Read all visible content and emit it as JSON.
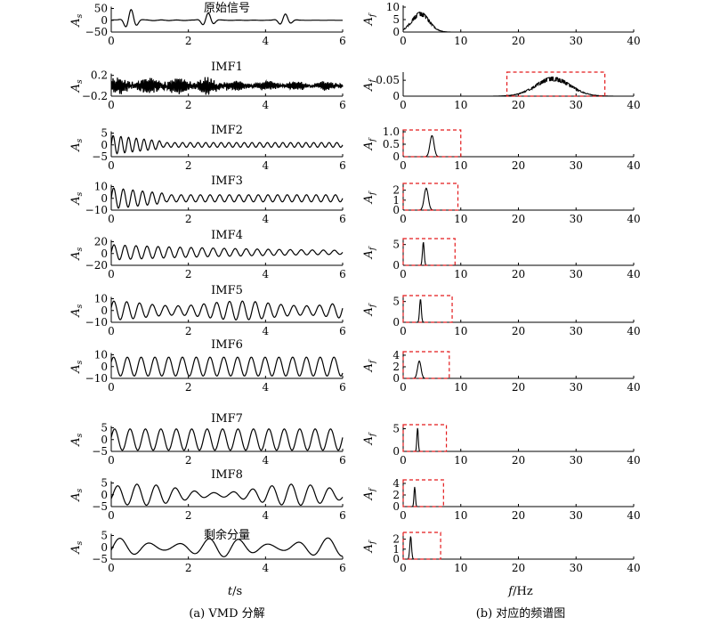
{
  "captions": {
    "left": "(a) VMD 分解",
    "right": "(b) 对应的频谱图"
  },
  "xlabels": {
    "left_var": "t",
    "left_unit": "/s",
    "right_var": "f",
    "right_unit": "/Hz"
  },
  "ylabels": {
    "left_base": "A",
    "left_sub": "s",
    "right_base": "A",
    "right_sub": "f"
  },
  "colors": {
    "signal": "#000000",
    "box": "#e31a1c"
  },
  "chart_data": [
    {
      "type": "line",
      "title": "原始信号",
      "panel": "time",
      "xlim": [
        0,
        6
      ],
      "ylim": [
        -50,
        50
      ],
      "xticks": [
        "0",
        "2",
        "4",
        "6"
      ],
      "yticks": [
        "50",
        "0",
        "−50"
      ],
      "ytick_values": [
        50,
        0,
        -50
      ],
      "signal": "transient bursts near t≈0.5, 2.5, 4.5 s"
    },
    {
      "type": "line",
      "title": "IMF1",
      "panel": "time",
      "xlim": [
        0,
        6
      ],
      "ylim": [
        -0.2,
        0.2
      ],
      "xticks": [
        "0",
        "2",
        "4",
        "6"
      ],
      "yticks": [
        "0.2",
        "−0.2"
      ],
      "ytick_values": [
        0.2,
        -0.2
      ],
      "signal": "high-frequency noise"
    },
    {
      "type": "line",
      "title": "IMF2",
      "panel": "time",
      "xlim": [
        0,
        6
      ],
      "ylim": [
        -5,
        5
      ],
      "xticks": [
        "0",
        "2",
        "4",
        "6"
      ],
      "yticks": [
        "5",
        "0",
        "−5"
      ],
      "ytick_values": [
        5,
        0,
        -5
      ],
      "signal": "damped oscillation ≈5 Hz"
    },
    {
      "type": "line",
      "title": "IMF3",
      "panel": "time",
      "xlim": [
        0,
        6
      ],
      "ylim": [
        -10,
        10
      ],
      "xticks": [
        "0",
        "2",
        "4",
        "6"
      ],
      "yticks": [
        "10",
        "0",
        "−10"
      ],
      "ytick_values": [
        10,
        0,
        -10
      ],
      "signal": "damped oscillation ≈4 Hz"
    },
    {
      "type": "line",
      "title": "IMF4",
      "panel": "time",
      "xlim": [
        0,
        6
      ],
      "ylim": [
        -20,
        20
      ],
      "xticks": [
        "0",
        "2",
        "4",
        "6"
      ],
      "yticks": [
        "20",
        "0",
        "−20"
      ],
      "ytick_values": [
        20,
        0,
        -20
      ],
      "signal": "oscillation ≈3.5 Hz decaying"
    },
    {
      "type": "line",
      "title": "IMF5",
      "panel": "time",
      "xlim": [
        0,
        6
      ],
      "ylim": [
        -10,
        10
      ],
      "xticks": [
        "0",
        "2",
        "4",
        "6"
      ],
      "yticks": [
        "10",
        "0",
        "−10"
      ],
      "ytick_values": [
        10,
        0,
        -10
      ],
      "signal": "oscillation ≈3 Hz"
    },
    {
      "type": "line",
      "title": "IMF6",
      "panel": "time",
      "xlim": [
        0,
        6
      ],
      "ylim": [
        -10,
        10
      ],
      "xticks": [
        "0",
        "2",
        "4",
        "6"
      ],
      "yticks": [
        "10",
        "0",
        "−10"
      ],
      "ytick_values": [
        10,
        0,
        -10
      ],
      "signal": "oscillation ≈2.8 Hz"
    },
    {
      "type": "line",
      "title": "IMF7",
      "panel": "time",
      "xlim": [
        0,
        6
      ],
      "ylim": [
        -5,
        5
      ],
      "xticks": [
        "0",
        "2",
        "4",
        "6"
      ],
      "yticks": [
        "5",
        "0",
        "−5"
      ],
      "ytick_values": [
        5,
        0,
        -5
      ],
      "signal": "oscillation ≈2.5 Hz"
    },
    {
      "type": "line",
      "title": "IMF8",
      "panel": "time",
      "xlim": [
        0,
        6
      ],
      "ylim": [
        -5,
        5
      ],
      "xticks": [
        "0",
        "2",
        "4",
        "6"
      ],
      "yticks": [
        "5",
        "0",
        "−5"
      ],
      "ytick_values": [
        5,
        0,
        -5
      ],
      "signal": "oscillation ≈2 Hz"
    },
    {
      "type": "line",
      "title": "剩余分量",
      "panel": "time",
      "xlim": [
        0,
        6
      ],
      "ylim": [
        -5,
        5
      ],
      "xticks": [
        "0",
        "2",
        "4",
        "6"
      ],
      "yticks": [
        "5",
        "0",
        "−5"
      ],
      "ytick_values": [
        5,
        0,
        -5
      ],
      "signal": "slow oscillation ≈1.3 Hz"
    },
    {
      "type": "line",
      "panel": "freq",
      "xlim": [
        0,
        40
      ],
      "ylim": [
        0,
        10
      ],
      "xticks": [
        "0",
        "10",
        "20",
        "30",
        "40"
      ],
      "yticks": [
        "10",
        "5",
        "0"
      ],
      "ytick_values": [
        10,
        5,
        0
      ],
      "peaks": [
        {
          "f": 3,
          "amp": 8,
          "width": 1.5
        }
      ]
    },
    {
      "type": "line",
      "panel": "freq",
      "xlim": [
        0,
        40
      ],
      "ylim": [
        0,
        0.07
      ],
      "xticks": [
        "0",
        "10",
        "20",
        "30",
        "40"
      ],
      "yticks": [
        "0.05",
        "0"
      ],
      "ytick_values": [
        0.05,
        0
      ],
      "peaks": [
        {
          "f": 26,
          "amp": 0.06,
          "width": 3
        }
      ],
      "box": [
        18,
        35
      ]
    },
    {
      "type": "line",
      "panel": "freq",
      "xlim": [
        0,
        40
      ],
      "ylim": [
        0,
        1.0
      ],
      "xticks": [
        "0",
        "10",
        "20",
        "30",
        "40"
      ],
      "yticks": [
        "1.0",
        "0.5",
        "0"
      ],
      "ytick_values": [
        1.0,
        0.5,
        0
      ],
      "peaks": [
        {
          "f": 5,
          "amp": 0.85,
          "width": 0.35
        }
      ],
      "box": [
        0,
        10
      ]
    },
    {
      "type": "line",
      "panel": "freq",
      "xlim": [
        0,
        40
      ],
      "ylim": [
        0,
        2.5
      ],
      "xticks": [
        "0",
        "10",
        "20",
        "30",
        "40"
      ],
      "yticks": [
        "2",
        "1",
        "0"
      ],
      "ytick_values": [
        2,
        1,
        0
      ],
      "peaks": [
        {
          "f": 4,
          "amp": 2.2,
          "width": 0.35
        }
      ],
      "box": [
        0,
        9.5
      ]
    },
    {
      "type": "line",
      "panel": "freq",
      "xlim": [
        0,
        40
      ],
      "ylim": [
        0,
        6
      ],
      "xticks": [
        "0",
        "10",
        "20",
        "30",
        "40"
      ],
      "yticks": [
        "5",
        "0"
      ],
      "ytick_values": [
        5,
        0
      ],
      "peaks": [
        {
          "f": 3.5,
          "amp": 5.6,
          "width": 0.15
        }
      ],
      "box": [
        0,
        9
      ]
    },
    {
      "type": "line",
      "panel": "freq",
      "xlim": [
        0,
        40
      ],
      "ylim": [
        0,
        6
      ],
      "xticks": [
        "0",
        "10",
        "20",
        "30",
        "40"
      ],
      "yticks": [
        "5",
        "0"
      ],
      "ytick_values": [
        5,
        0
      ],
      "peaks": [
        {
          "f": 3,
          "amp": 5.6,
          "width": 0.15
        }
      ],
      "box": [
        0,
        8.5
      ]
    },
    {
      "type": "line",
      "panel": "freq",
      "xlim": [
        0,
        40
      ],
      "ylim": [
        0,
        4.3
      ],
      "xticks": [
        "0",
        "10",
        "20",
        "30",
        "40"
      ],
      "yticks": [
        "4",
        "2",
        "0"
      ],
      "ytick_values": [
        4,
        2,
        0
      ],
      "peaks": [
        {
          "f": 2.8,
          "amp": 3.0,
          "width": 0.3
        }
      ],
      "box": [
        0,
        8
      ]
    },
    {
      "type": "line",
      "panel": "freq",
      "xlim": [
        0,
        40
      ],
      "ylim": [
        0,
        5.5
      ],
      "xticks": [
        "0",
        "10",
        "20",
        "30",
        "40"
      ],
      "yticks": [
        "5",
        "0"
      ],
      "ytick_values": [
        5,
        0
      ],
      "peaks": [
        {
          "f": 2.5,
          "amp": 5.2,
          "width": 0.12
        }
      ],
      "box": [
        0,
        7.5
      ]
    },
    {
      "type": "line",
      "panel": "freq",
      "xlim": [
        0,
        40
      ],
      "ylim": [
        0,
        4.3
      ],
      "xticks": [
        "0",
        "10",
        "20",
        "30",
        "40"
      ],
      "yticks": [
        "4",
        "2",
        "0"
      ],
      "ytick_values": [
        4,
        2,
        0
      ],
      "peaks": [
        {
          "f": 2,
          "amp": 3.4,
          "width": 0.12
        }
      ],
      "box": [
        0,
        7
      ]
    },
    {
      "type": "line",
      "panel": "freq",
      "xlim": [
        0,
        40
      ],
      "ylim": [
        0,
        2.5
      ],
      "xticks": [
        "0",
        "10",
        "20",
        "30",
        "40"
      ],
      "yticks": [
        "2",
        "1",
        "0"
      ],
      "ytick_values": [
        2,
        1,
        0
      ],
      "peaks": [
        {
          "f": 1.3,
          "amp": 2.3,
          "width": 0.15
        }
      ],
      "box": [
        0,
        6.5
      ]
    }
  ]
}
